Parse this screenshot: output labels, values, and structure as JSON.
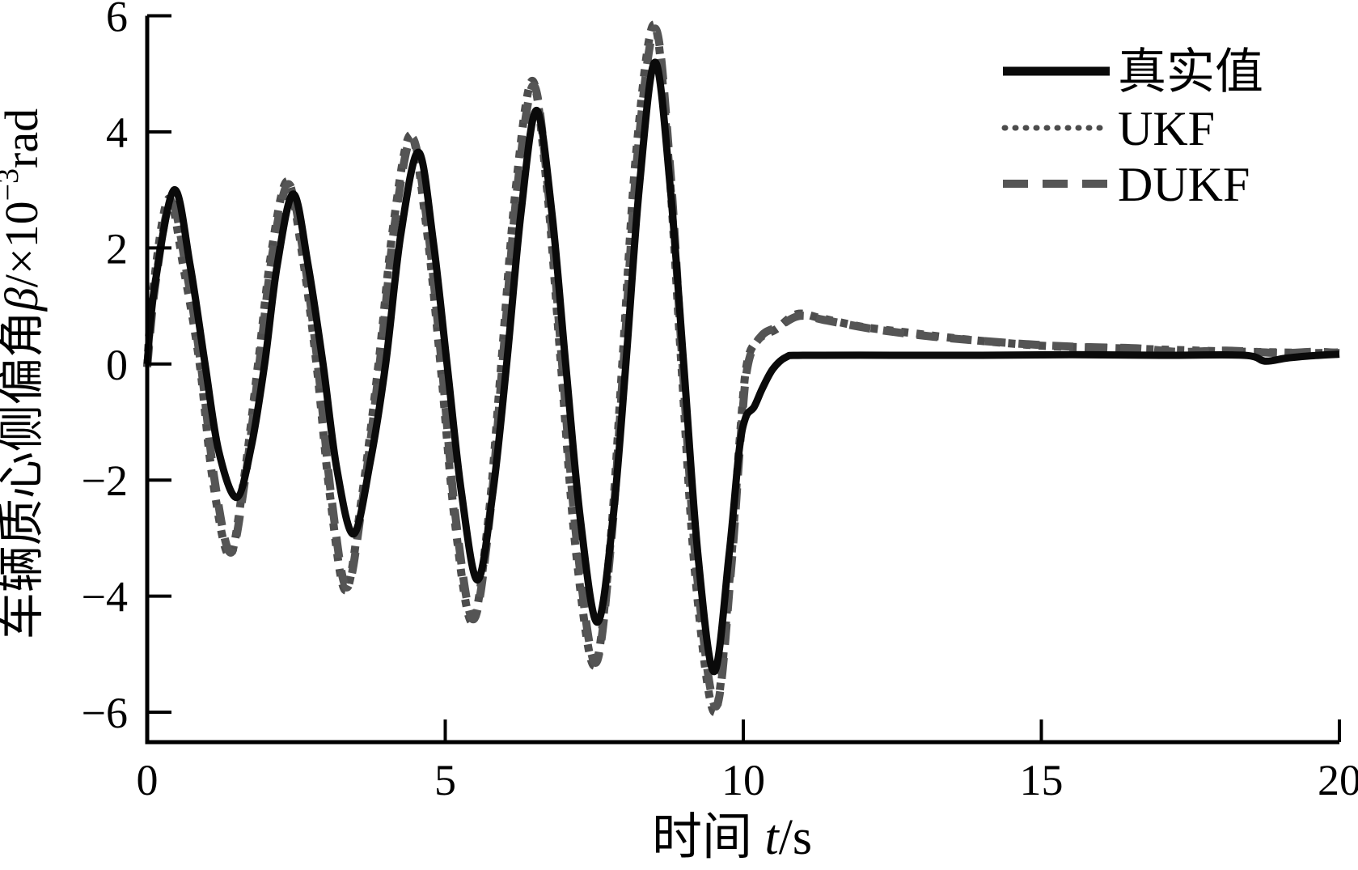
{
  "chart_data": {
    "type": "line",
    "title": "",
    "xlabel": "时间 t/s",
    "xlabel_parts": {
      "prefix": "时间 ",
      "var": "t",
      "unit": "/s"
    },
    "ylabel": "车辆质心侧偏角 β/×10⁻³rad",
    "ylabel_parts": {
      "prefix": "车辆质心侧偏角",
      "beta": "β",
      "mid": "/×10",
      "exp": "−3",
      "unit": "rad"
    },
    "xlim": [
      0,
      20
    ],
    "ylim": [
      -6,
      6
    ],
    "grid": false,
    "legend_position": "top-right",
    "ticks": {
      "x": [
        {
          "v": 0,
          "label": "0"
        },
        {
          "v": 5,
          "label": "5"
        },
        {
          "v": 10,
          "label": "10"
        },
        {
          "v": 15,
          "label": "15"
        },
        {
          "v": 20,
          "label": "20"
        }
      ],
      "y": [
        {
          "v": 6,
          "label": "6"
        },
        {
          "v": 4,
          "label": "4"
        },
        {
          "v": 2,
          "label": "2"
        },
        {
          "v": 0,
          "label": "0"
        },
        {
          "v": -2,
          "label": "−2"
        },
        {
          "v": -4,
          "label": "−4"
        },
        {
          "v": -6,
          "label": "−6"
        }
      ]
    },
    "legend": [
      "真实值",
      "UKF",
      "DUKF"
    ],
    "series": [
      {
        "name": "UKF",
        "style": "dotted",
        "color": "#4d4d4d",
        "points": [
          [
            0,
            -0.05
          ],
          [
            0.1,
            1.3
          ],
          [
            0.36,
            2.85
          ],
          [
            0.62,
            1.6
          ],
          [
            0.88,
            0
          ],
          [
            1.1,
            -2.0
          ],
          [
            1.38,
            -3.3
          ],
          [
            1.62,
            -2.0
          ],
          [
            1.86,
            0
          ],
          [
            2.08,
            1.9
          ],
          [
            2.35,
            3.15
          ],
          [
            2.6,
            1.9
          ],
          [
            2.84,
            0
          ],
          [
            3.07,
            -2.3
          ],
          [
            3.33,
            -3.9
          ],
          [
            3.6,
            -2.3
          ],
          [
            3.88,
            0
          ],
          [
            4.13,
            2.4
          ],
          [
            4.42,
            3.95
          ],
          [
            4.68,
            2.4
          ],
          [
            4.92,
            0
          ],
          [
            5.16,
            -2.7
          ],
          [
            5.45,
            -4.45
          ],
          [
            5.72,
            -2.7
          ],
          [
            5.94,
            0
          ],
          [
            6.18,
            3.0
          ],
          [
            6.46,
            4.88
          ],
          [
            6.71,
            3.0
          ],
          [
            6.94,
            0
          ],
          [
            7.19,
            -3.2
          ],
          [
            7.5,
            -5.2
          ],
          [
            7.76,
            -3.2
          ],
          [
            7.97,
            0
          ],
          [
            8.2,
            3.6
          ],
          [
            8.5,
            5.85
          ],
          [
            8.74,
            3.6
          ],
          [
            8.96,
            0
          ],
          [
            9.2,
            -3.7
          ],
          [
            9.52,
            -6.0
          ],
          [
            9.77,
            -3.7
          ],
          [
            9.94,
            -1.3
          ],
          [
            10.06,
            0
          ],
          [
            10.25,
            0.42
          ],
          [
            10.55,
            0.6
          ],
          [
            10.9,
            0.86
          ],
          [
            11.3,
            0.79
          ],
          [
            12.0,
            0.64
          ],
          [
            12.7,
            0.55
          ],
          [
            13.5,
            0.45
          ],
          [
            14.3,
            0.37
          ],
          [
            15.1,
            0.31
          ],
          [
            16.0,
            0.28
          ],
          [
            17.0,
            0.25
          ],
          [
            18.0,
            0.22
          ],
          [
            19.0,
            0.2
          ],
          [
            19.6,
            0.19
          ],
          [
            20,
            0.2
          ]
        ]
      },
      {
        "name": "DUKF",
        "style": "dashed",
        "color": "#555555",
        "points": [
          [
            0,
            -0.05
          ],
          [
            0.14,
            1.4
          ],
          [
            0.4,
            2.8
          ],
          [
            0.66,
            1.6
          ],
          [
            0.9,
            0
          ],
          [
            1.13,
            -2.0
          ],
          [
            1.4,
            -3.25
          ],
          [
            1.64,
            -2.0
          ],
          [
            1.88,
            0
          ],
          [
            2.1,
            1.9
          ],
          [
            2.37,
            3.1
          ],
          [
            2.62,
            1.9
          ],
          [
            2.86,
            0
          ],
          [
            3.09,
            -2.3
          ],
          [
            3.35,
            -3.85
          ],
          [
            3.62,
            -2.3
          ],
          [
            3.9,
            0
          ],
          [
            4.15,
            2.4
          ],
          [
            4.44,
            3.9
          ],
          [
            4.7,
            2.4
          ],
          [
            4.94,
            0
          ],
          [
            5.18,
            -2.7
          ],
          [
            5.47,
            -4.4
          ],
          [
            5.74,
            -2.7
          ],
          [
            5.96,
            0
          ],
          [
            6.2,
            2.95
          ],
          [
            6.48,
            4.8
          ],
          [
            6.73,
            2.95
          ],
          [
            6.96,
            0
          ],
          [
            7.21,
            -3.1
          ],
          [
            7.52,
            -5.15
          ],
          [
            7.78,
            -3.1
          ],
          [
            7.99,
            0
          ],
          [
            8.22,
            3.55
          ],
          [
            8.52,
            5.78
          ],
          [
            8.76,
            3.55
          ],
          [
            8.98,
            0
          ],
          [
            9.22,
            -3.6
          ],
          [
            9.54,
            -5.9
          ],
          [
            9.79,
            -3.6
          ],
          [
            9.96,
            -1.2
          ],
          [
            10.08,
            0
          ],
          [
            10.3,
            0.48
          ],
          [
            10.6,
            0.65
          ],
          [
            10.95,
            0.83
          ],
          [
            11.4,
            0.75
          ],
          [
            12.2,
            0.6
          ],
          [
            13.2,
            0.47
          ],
          [
            14.5,
            0.36
          ],
          [
            15.5,
            0.3
          ],
          [
            16.6,
            0.27
          ],
          [
            17.3,
            0.21
          ],
          [
            18.1,
            0.23
          ],
          [
            19.0,
            0.19
          ],
          [
            19.6,
            0.21
          ],
          [
            20,
            0.19
          ]
        ]
      },
      {
        "name": "真实值",
        "style": "solid",
        "color": "#0a0a0a",
        "points": [
          [
            0,
            0
          ],
          [
            0.12,
            1.3
          ],
          [
            0.45,
            3.0
          ],
          [
            0.72,
            1.7
          ],
          [
            0.97,
            0
          ],
          [
            1.2,
            -1.5
          ],
          [
            1.5,
            -2.3
          ],
          [
            1.75,
            -1.4
          ],
          [
            1.97,
            0
          ],
          [
            2.18,
            1.7
          ],
          [
            2.45,
            2.93
          ],
          [
            2.7,
            1.7
          ],
          [
            2.95,
            0
          ],
          [
            3.18,
            -1.8
          ],
          [
            3.46,
            -2.93
          ],
          [
            3.74,
            -1.7
          ],
          [
            4.0,
            0
          ],
          [
            4.25,
            2.2
          ],
          [
            4.55,
            3.65
          ],
          [
            4.8,
            2.1
          ],
          [
            5.03,
            0
          ],
          [
            5.27,
            -2.2
          ],
          [
            5.54,
            -3.72
          ],
          [
            5.8,
            -2.2
          ],
          [
            6.03,
            0
          ],
          [
            6.27,
            2.6
          ],
          [
            6.53,
            4.37
          ],
          [
            6.79,
            2.6
          ],
          [
            7.02,
            0
          ],
          [
            7.27,
            -2.7
          ],
          [
            7.55,
            -4.45
          ],
          [
            7.81,
            -2.7
          ],
          [
            8.03,
            0
          ],
          [
            8.26,
            3.1
          ],
          [
            8.52,
            5.2
          ],
          [
            8.77,
            3.1
          ],
          [
            9.0,
            0
          ],
          [
            9.24,
            -3.3
          ],
          [
            9.51,
            -5.3
          ],
          [
            9.76,
            -3.3
          ],
          [
            9.93,
            -1.5
          ],
          [
            10.04,
            -0.92
          ],
          [
            10.18,
            -0.74
          ],
          [
            10.32,
            -0.42
          ],
          [
            10.5,
            -0.08
          ],
          [
            10.72,
            0.12
          ],
          [
            11.0,
            0.15
          ],
          [
            12.5,
            0.15
          ],
          [
            14.0,
            0.15
          ],
          [
            15.5,
            0.16
          ],
          [
            17.0,
            0.15
          ],
          [
            18.4,
            0.15
          ],
          [
            18.75,
            0.05
          ],
          [
            19.1,
            0.1
          ],
          [
            19.5,
            0.14
          ],
          [
            20,
            0.17
          ]
        ]
      }
    ]
  },
  "legend_items": [
    {
      "label": "真实值"
    },
    {
      "label": "UKF"
    },
    {
      "label": "DUKF"
    }
  ]
}
